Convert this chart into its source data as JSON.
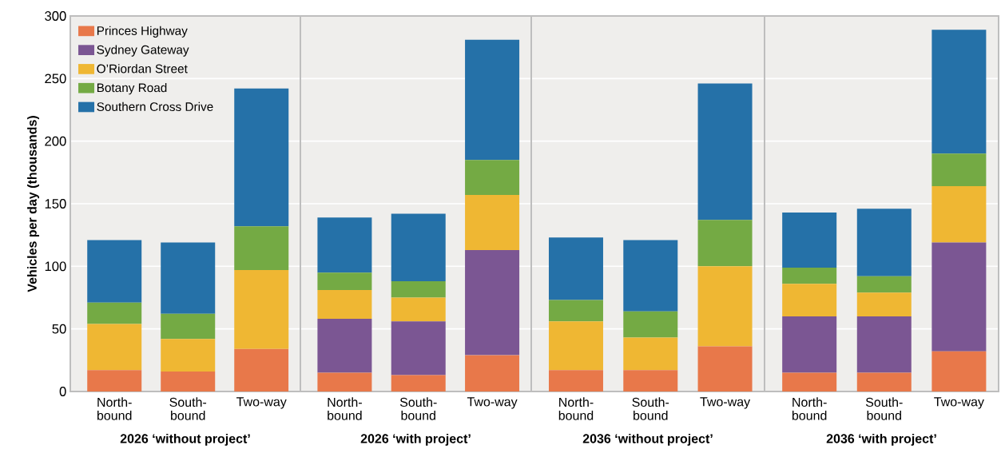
{
  "chart_data": [
    {
      "type": "bar",
      "stacked": true,
      "xlabel": "2026 ‘without project’",
      "ylabel": "Vehicles per day (thousands)",
      "categories": [
        "North-bound",
        "South-bound",
        "Two-way"
      ],
      "ylim": [
        0,
        300
      ],
      "yticks": [
        0,
        50,
        100,
        150,
        200,
        250,
        300
      ],
      "grid": "y",
      "legend": "top left",
      "series": [
        {
          "name": "Princes Highway",
          "color": "#e8784a",
          "values": [
            17,
            16,
            34
          ]
        },
        {
          "name": "Sydney Gateway",
          "color": "#7b5693",
          "values": [
            0,
            0,
            0
          ]
        },
        {
          "name": "O’Riordan Street",
          "color": "#efb733",
          "values": [
            37,
            26,
            63
          ]
        },
        {
          "name": "Botany Road",
          "color": "#74aa44",
          "values": [
            17,
            20,
            35
          ]
        },
        {
          "name": "Southern Cross Drive",
          "color": "#2571a8",
          "values": [
            50,
            57,
            110
          ]
        }
      ]
    },
    {
      "type": "bar",
      "stacked": true,
      "xlabel": "2026 ‘with project’",
      "categories": [
        "North-bound",
        "South-bound",
        "Two-way"
      ],
      "ylim": [
        0,
        300
      ],
      "yticks": [
        0,
        50,
        100,
        150,
        200,
        250,
        300
      ],
      "grid": "y",
      "tick_labels": "x",
      "series": [
        {
          "color": "#e8784a",
          "values": [
            15,
            13,
            29
          ]
        },
        {
          "color": "#7b5693",
          "values": [
            43,
            43,
            84
          ]
        },
        {
          "color": "#efb733",
          "values": [
            23,
            19,
            44
          ]
        },
        {
          "color": "#74aa44",
          "values": [
            14,
            13,
            28
          ]
        },
        {
          "color": "#2571a8",
          "values": [
            44,
            54,
            96
          ]
        }
      ]
    },
    {
      "type": "bar",
      "stacked": true,
      "xlabel": "2036 ‘without project’",
      "categories": [
        "North-bound",
        "South-bound",
        "Two-way"
      ],
      "ylim": [
        0,
        300
      ],
      "yticks": [
        0,
        50,
        100,
        150,
        200,
        250,
        300
      ],
      "grid": "y",
      "tick_labels": "x",
      "series": [
        {
          "color": "#e8784a",
          "values": [
            17,
            17,
            36
          ]
        },
        {
          "color": "#efb733",
          "values": [
            39,
            26,
            64
          ]
        },
        {
          "color": "#74aa44",
          "values": [
            17,
            21,
            37
          ]
        },
        {
          "color": "#2571a8",
          "values": [
            50,
            57,
            109
          ]
        }
      ]
    },
    {
      "type": "bar",
      "stacked": true,
      "xlabel": "2036 ‘with project’",
      "categories": [
        "North-bound",
        "South-bound",
        "Two-way"
      ],
      "ylim": [
        0,
        300
      ],
      "yticks": [
        0,
        50,
        100,
        150,
        200,
        250,
        300
      ],
      "grid": "y",
      "tick_labels": "x",
      "series": [
        {
          "color": "#e8784a",
          "values": [
            15,
            15,
            32
          ]
        },
        {
          "color": "#7b5693",
          "values": [
            45,
            45,
            87
          ]
        },
        {
          "color": "#efb733",
          "values": [
            26,
            19,
            45
          ]
        },
        {
          "color": "#74aa44",
          "values": [
            13,
            13,
            26
          ]
        },
        {
          "color": "#2571a8",
          "values": [
            44,
            54,
            99
          ]
        }
      ]
    }
  ]
}
